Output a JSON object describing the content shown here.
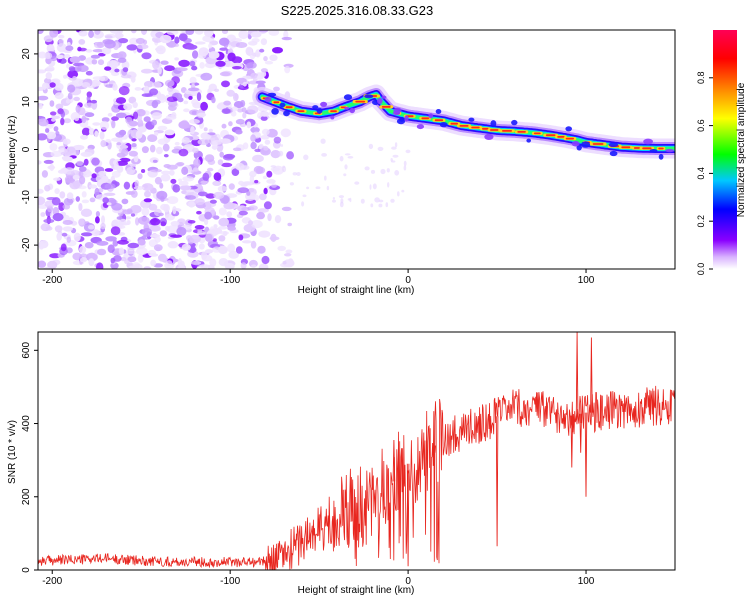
{
  "figure_title": "S225.2025.316.08.33.G23",
  "chart_data": [
    {
      "type": "heatmap",
      "id": "spectrogram",
      "xlabel": "Height of straight line (km)",
      "ylabel": "Frequency (Hz)",
      "xlim": [
        -208,
        150
      ],
      "ylim": [
        -25,
        25
      ],
      "xticks": [
        -200,
        -100,
        0,
        100
      ],
      "yticks": [
        -20,
        -10,
        0,
        10,
        20
      ],
      "xtick_labels": [
        "-200",
        "-100",
        "0",
        "100"
      ],
      "ytick_labels": [
        "-20",
        "-10",
        "0",
        "10",
        "20"
      ],
      "noise_region_x": [
        -208,
        -80
      ],
      "ridge": {
        "x": [
          -82,
          -75,
          -68,
          -60,
          -50,
          -42,
          -35,
          -27,
          -22,
          -18,
          -15,
          -10,
          0,
          10,
          20,
          30,
          40,
          50,
          60,
          70,
          80,
          88,
          95,
          100,
          110,
          120,
          130,
          140,
          150
        ],
        "freq": [
          11,
          10,
          9,
          8,
          7.5,
          8,
          9,
          10,
          11,
          11.5,
          10,
          8,
          7,
          6.5,
          6,
          5,
          4.5,
          4,
          3.8,
          3.5,
          3,
          2.5,
          2,
          1.5,
          1,
          0.5,
          0.3,
          0.2,
          0.2
        ]
      },
      "colorbar": {
        "label": "Normalized spectral amplitude",
        "range": [
          0.0,
          1.0
        ],
        "ticks": [
          0.0,
          0.2,
          0.4,
          0.6,
          0.8
        ],
        "tick_labels": [
          "0.0",
          "0.2",
          "0.4",
          "0.6",
          "0.8"
        ],
        "stops": [
          "#ffffff",
          "#d9b3ff",
          "#8a00ff",
          "#0000ff",
          "#00c8ff",
          "#00ff00",
          "#ffff00",
          "#ff8800",
          "#ff0000",
          "#ff0055"
        ]
      }
    },
    {
      "type": "line",
      "id": "snr",
      "xlabel": "Height of straight line (km)",
      "ylabel": "SNR (10 * v/v)",
      "xlim": [
        -208,
        150
      ],
      "ylim": [
        0,
        650
      ],
      "xticks": [
        -200,
        -100,
        0,
        100
      ],
      "yticks": [
        0,
        200,
        400,
        600
      ],
      "xtick_labels": [
        "-200",
        "-100",
        "0",
        "100"
      ],
      "ytick_labels": [
        "0",
        "200",
        "400",
        "600"
      ],
      "color": "#e8261f",
      "series": [
        {
          "name": "SNR",
          "x": [
            -208,
            -190,
            -170,
            -150,
            -130,
            -110,
            -90,
            -80,
            -70,
            -60,
            -50,
            -40,
            -30,
            -20,
            -10,
            0,
            10,
            20,
            30,
            40,
            50,
            60,
            70,
            80,
            90,
            100,
            110,
            120,
            130,
            140,
            150
          ],
          "y": [
            25,
            28,
            32,
            25,
            22,
            22,
            22,
            23,
            40,
            80,
            110,
            140,
            170,
            190,
            230,
            290,
            320,
            360,
            380,
            400,
            420,
            440,
            440,
            430,
            420,
            430,
            430,
            440,
            440,
            450,
            450
          ]
        }
      ],
      "spikes": {
        "x": [
          -8,
          0,
          15,
          50,
          92,
          95,
          97,
          100,
          103
        ],
        "y": [
          355,
          10,
          320,
          65,
          280,
          650,
          320,
          200,
          635
        ]
      }
    }
  ]
}
